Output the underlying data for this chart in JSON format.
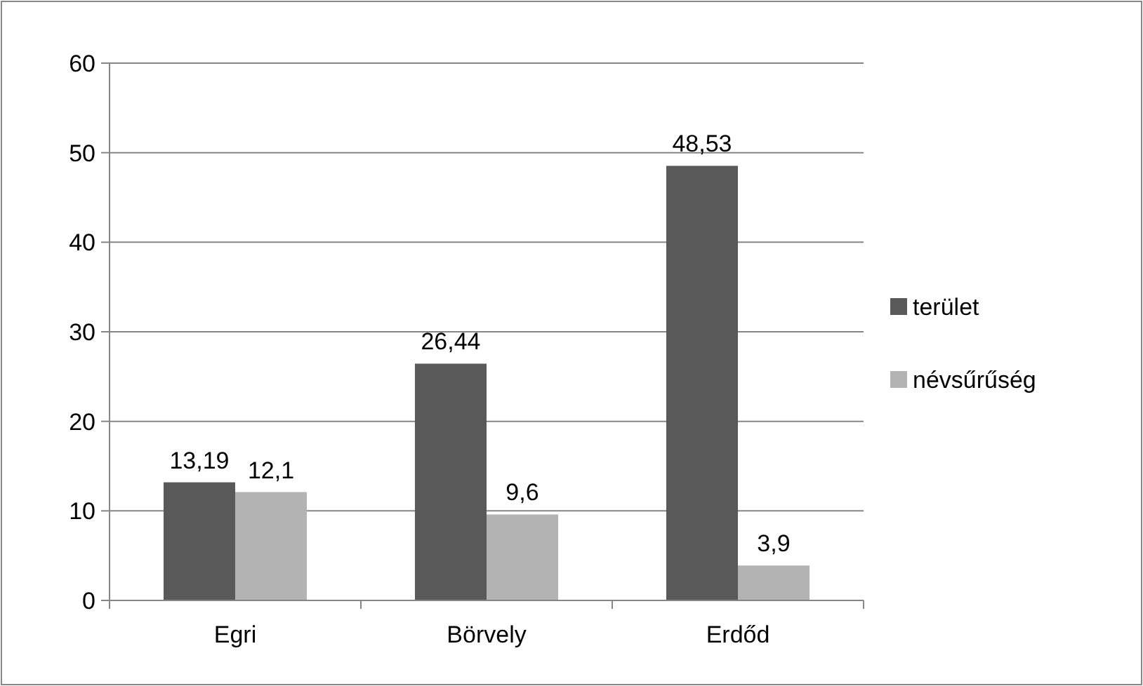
{
  "chart_data": {
    "type": "bar",
    "categories": [
      "Egri",
      "Börvely",
      "Erdőd"
    ],
    "series": [
      {
        "name": "terület",
        "color": "#595959",
        "values": [
          13.19,
          26.44,
          48.53
        ],
        "value_labels": [
          "13,19",
          "26,44",
          "48,53"
        ]
      },
      {
        "name": "névsűrűség",
        "color": "#b3b3b3",
        "values": [
          12.1,
          9.6,
          3.9
        ],
        "value_labels": [
          "12,1",
          "9,6",
          "3,9"
        ]
      }
    ],
    "ylim": [
      0,
      60
    ],
    "yticks": [
      0,
      10,
      20,
      30,
      40,
      50,
      60
    ],
    "grid": "y",
    "legend": "right"
  }
}
